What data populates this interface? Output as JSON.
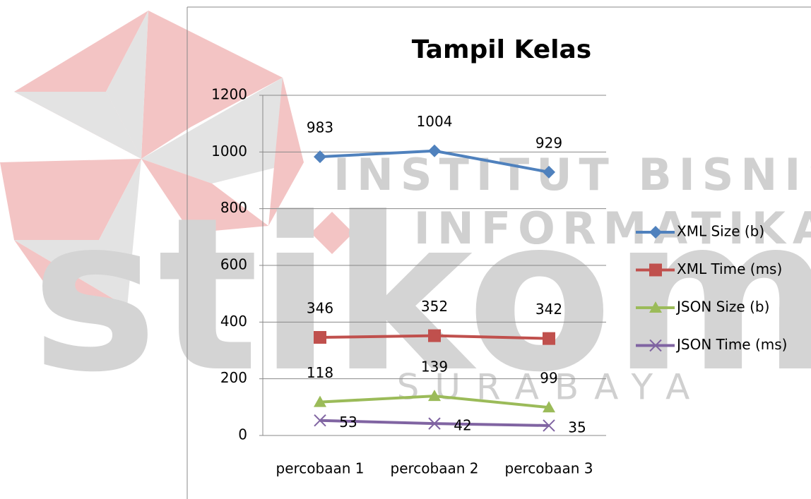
{
  "chart_data": {
    "type": "line",
    "title": "Tampil Kelas",
    "categories": [
      "percobaan 1",
      "percobaan 2",
      "percobaan 3"
    ],
    "series": [
      {
        "name": "XML Size (b)",
        "color": "#4f81bd",
        "marker": "diamond",
        "values": [
          983,
          1004,
          929
        ]
      },
      {
        "name": "XML Time (ms)",
        "color": "#c0504d",
        "marker": "square",
        "values": [
          346,
          352,
          342
        ]
      },
      {
        "name": "JSON Size (b)",
        "color": "#9bbb59",
        "marker": "triangle",
        "values": [
          118,
          139,
          99
        ]
      },
      {
        "name": "JSON Time (ms)",
        "color": "#8064a2",
        "marker": "x",
        "values": [
          53,
          42,
          35
        ]
      }
    ],
    "ylim": [
      0,
      1200
    ],
    "yticks": [
      0,
      200,
      400,
      600,
      800,
      1000,
      1200
    ],
    "grid": true,
    "legend": "right",
    "watermark": [
      "INSTITUT BISNIS",
      "& INFORMATIKA",
      "stikom",
      "SURABAYA"
    ]
  }
}
